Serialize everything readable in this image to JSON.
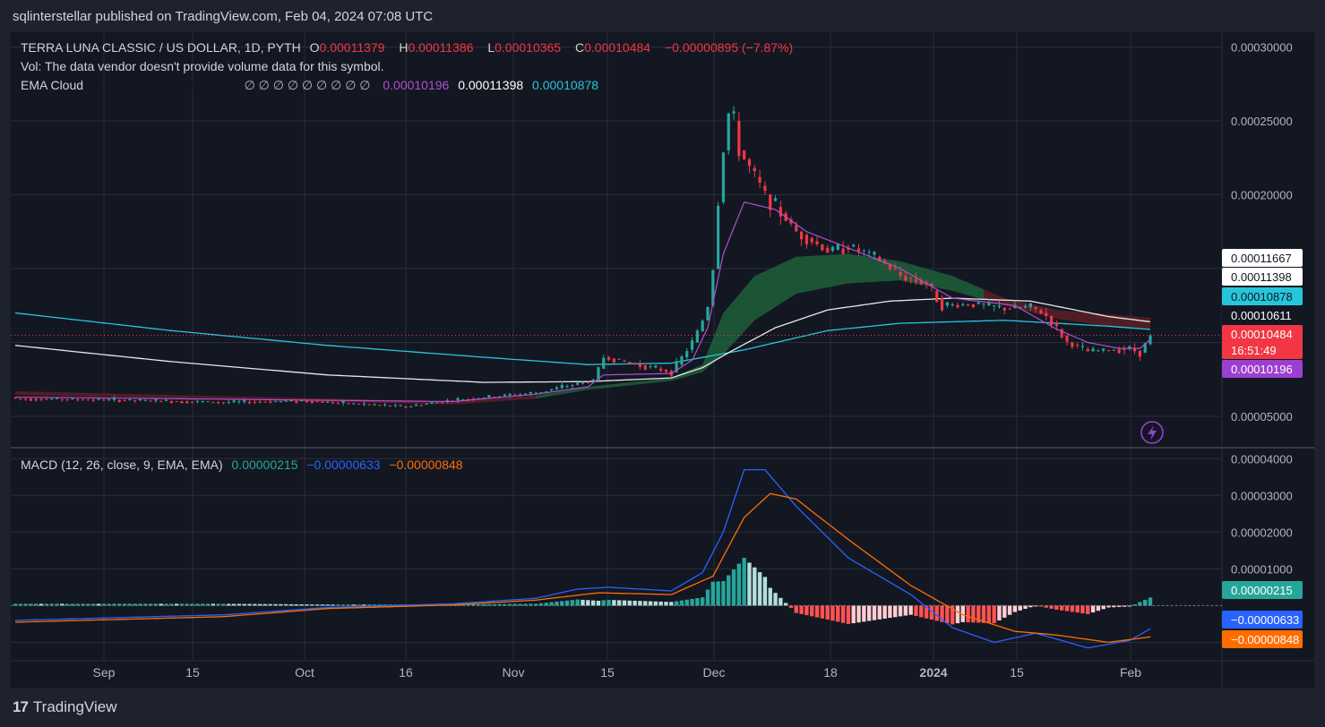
{
  "header": {
    "published": "sqlinterstellar published on TradingView.com, Feb 04, 2024 07:08 UTC"
  },
  "legend": {
    "symbol": "TERRA LUNA CLASSIC / US DOLLAR, 1D, PYTH",
    "o_label": "O",
    "o_value": "0.00011379",
    "h_label": "H",
    "h_value": "0.00011386",
    "l_label": "L",
    "l_value": "0.00010365",
    "c_label": "C",
    "c_value": "0.00010484",
    "change": "−0.00000895 (−7.87%)",
    "vol_note": "Vol: The data vendor doesn't provide volume data for this symbol.",
    "ema_label": "EMA Cloud",
    "ema_v1": "0.00010611",
    "ema_v2": "0.00011667",
    "ema_empty": "∅  ∅  ∅  ∅  ∅  ∅  ∅  ∅  ∅",
    "ema_v3": "0.00010196",
    "ema_v4": "0.00011398",
    "ema_v5": "0.00010878",
    "macd_label": "MACD (12, 26, close, 9, EMA, EMA)",
    "macd_hist": "0.00000215",
    "macd_line": "−0.00000633",
    "macd_signal": "−0.00000848"
  },
  "footer": {
    "brand": "TradingView",
    "logo": "17"
  },
  "colors": {
    "bg": "#131722",
    "up": "#26a69a",
    "down": "#f23645",
    "grid": "#2a2e39",
    "ema_fast": "#b14fcf",
    "ema_white": "#e8e8e8",
    "ema_teal": "#26c6da",
    "cloud_green": "#1e5f3a",
    "cloud_red": "#5c1f27",
    "macd_line": "#2962ff",
    "signal": "#ff6d00",
    "hist_up_strong": "#26a69a",
    "hist_up_weak": "#b2dfdb",
    "hist_down_strong": "#ff5252",
    "hist_down_weak": "#ffcdd2"
  },
  "chart_data": {
    "type": "candlestick",
    "price_axis": {
      "ticks": [
        "0.00030000",
        "0.00025000",
        "0.00020000",
        "0.00005000"
      ],
      "ylim": [
        3e-05,
        0.00031
      ]
    },
    "macd_axis": {
      "ticks": [
        "0.00004000",
        "0.00003000",
        "0.00002000",
        "0.00001000"
      ],
      "ylim": [
        -1.5e-05,
        4.25e-05
      ]
    },
    "x_ticks": [
      "Sep",
      "15",
      "Oct",
      "16",
      "Nov",
      "15",
      "Dec",
      "18",
      "2024",
      "15",
      "Feb"
    ],
    "price_labels": [
      {
        "text": "0.00011667",
        "value": 0.00011667,
        "bg": "#ffffff",
        "fg": "#131722"
      },
      {
        "text": "0.00011398",
        "value": 0.00011398,
        "bg": "#ffffff",
        "fg": "#131722"
      },
      {
        "text": "0.00010878",
        "value": 0.00010878,
        "bg": "#26c6da",
        "fg": "#131722"
      },
      {
        "text": "0.00010611",
        "value": 0.00010611,
        "bg": "#131722",
        "fg": "#ffffff"
      },
      {
        "text": "0.00010484",
        "value": 0.00010484,
        "bg": "#f23645",
        "fg": "#ffffff"
      },
      {
        "text": "16:51:49",
        "value": 0.00010484,
        "bg": "#f23645",
        "fg": "#ffffff"
      },
      {
        "text": "0.00010196",
        "value": 0.00010196,
        "bg": "#9c3fd0",
        "fg": "#ffffff"
      }
    ],
    "macd_labels": [
      {
        "text": "0.00000215",
        "value": 2.15e-06,
        "bg": "#26a69a",
        "fg": "#ffffff"
      },
      {
        "text": "−0.00000633",
        "value": -6.33e-06,
        "bg": "#2962ff",
        "fg": "#ffffff"
      },
      {
        "text": "−0.00000848",
        "value": -8.48e-06,
        "bg": "#ff6d00",
        "fg": "#ffffff"
      }
    ],
    "last_close": 0.00010484,
    "anchors": {
      "close": [
        [
          0,
          6.2e-05
        ],
        [
          20,
          6.1e-05
        ],
        [
          40,
          5.95e-05
        ],
        [
          55,
          6.05e-05
        ],
        [
          65,
          5.85e-05
        ],
        [
          75,
          5.65e-05
        ],
        [
          84,
          6.1e-05
        ],
        [
          100,
          6.6e-05
        ],
        [
          111,
          7.45e-05
        ],
        [
          113,
          9e-05
        ],
        [
          120,
          8.45e-05
        ],
        [
          126,
          8e-05
        ],
        [
          128,
          9e-05
        ],
        [
          130,
          0.0001
        ],
        [
          132,
          0.000115
        ],
        [
          133,
          0.000125
        ],
        [
          134,
          0.00015
        ],
        [
          135,
          0.000195
        ],
        [
          136,
          0.00023
        ],
        [
          137,
          0.000255
        ],
        [
          138,
          0.00025
        ],
        [
          139,
          0.00023
        ],
        [
          141,
          0.000218
        ],
        [
          144,
          0.0002
        ],
        [
          150,
          0.000175
        ],
        [
          156,
          0.000162
        ],
        [
          160,
          0.000165
        ],
        [
          165,
          0.000158
        ],
        [
          170,
          0.000145
        ],
        [
          175,
          0.00014
        ],
        [
          178,
          0.000125
        ],
        [
          184,
          0.000126
        ],
        [
          190,
          0.000123
        ],
        [
          195,
          0.000124
        ],
        [
          198,
          0.000118
        ],
        [
          202,
          0.0001
        ],
        [
          206,
          9.4e-05
        ],
        [
          210,
          9.5e-05
        ],
        [
          214,
          9.6e-05
        ],
        [
          216,
          9.3e-05
        ],
        [
          218,
          0.0001048
        ]
      ],
      "ema_fast": [
        [
          0,
          6.3e-05
        ],
        [
          84,
          6e-05
        ],
        [
          100,
          6.5e-05
        ],
        [
          110,
          7e-05
        ],
        [
          113,
          7.8e-05
        ],
        [
          126,
          7.9e-05
        ],
        [
          130,
          8.8e-05
        ],
        [
          133,
          0.00011
        ],
        [
          136,
          0.00016
        ],
        [
          140,
          0.000195
        ],
        [
          146,
          0.00019
        ],
        [
          152,
          0.000175
        ],
        [
          160,
          0.000164
        ],
        [
          170,
          0.00015
        ],
        [
          180,
          0.00013
        ],
        [
          192,
          0.000125
        ],
        [
          200,
          0.000109
        ],
        [
          206,
          0.0001
        ],
        [
          212,
          9.6e-05
        ],
        [
          216,
          9.6e-05
        ],
        [
          218,
          0.000102
        ]
      ],
      "cloud_top": [
        [
          0,
          6.7e-05
        ],
        [
          84,
          6e-05
        ],
        [
          100,
          6.4e-05
        ],
        [
          110,
          7e-05
        ],
        [
          126,
          7.6e-05
        ],
        [
          132,
          8.5e-05
        ],
        [
          136,
          0.00012
        ],
        [
          142,
          0.000145
        ],
        [
          150,
          0.000158
        ],
        [
          160,
          0.00016
        ],
        [
          170,
          0.000155
        ],
        [
          180,
          0.000145
        ],
        [
          190,
          0.00013
        ],
        [
          200,
          0.000122
        ],
        [
          210,
          0.000119
        ],
        [
          218,
          0.0001167
        ]
      ],
      "cloud_bottom": [
        [
          0,
          6.45e-05
        ],
        [
          84,
          5.8e-05
        ],
        [
          100,
          6.2e-05
        ],
        [
          110,
          6.8e-05
        ],
        [
          126,
          7.4e-05
        ],
        [
          132,
          8e-05
        ],
        [
          136,
          9.2e-05
        ],
        [
          142,
          0.000115
        ],
        [
          150,
          0.000133
        ],
        [
          160,
          0.00014
        ],
        [
          170,
          0.000142
        ],
        [
          180,
          0.000135
        ],
        [
          190,
          0.000125
        ],
        [
          200,
          0.000116
        ],
        [
          210,
          0.000111
        ],
        [
          218,
          0.0001088
        ]
      ],
      "ema_white": [
        [
          0,
          9.8e-05
        ],
        [
          30,
          8.7e-05
        ],
        [
          60,
          7.8e-05
        ],
        [
          90,
          7.3e-05
        ],
        [
          110,
          7.35e-05
        ],
        [
          126,
          7.6e-05
        ],
        [
          132,
          8.3e-05
        ],
        [
          138,
          9.5e-05
        ],
        [
          146,
          0.00011
        ],
        [
          156,
          0.000122
        ],
        [
          168,
          0.000128
        ],
        [
          180,
          0.00013
        ],
        [
          195,
          0.000128
        ],
        [
          210,
          0.0001175
        ],
        [
          218,
          0.000114
        ]
      ],
      "ema_teal": [
        [
          0,
          0.00012
        ],
        [
          30,
          0.000108
        ],
        [
          60,
          9.8e-05
        ],
        [
          90,
          9e-05
        ],
        [
          110,
          8.5e-05
        ],
        [
          126,
          8.6e-05
        ],
        [
          140,
          9.5e-05
        ],
        [
          156,
          0.000108
        ],
        [
          170,
          0.000113
        ],
        [
          190,
          0.000115
        ],
        [
          210,
          0.000111
        ],
        [
          218,
          0.0001088
        ]
      ],
      "macd": [
        [
          0,
          -4e-06
        ],
        [
          40,
          -2.5e-06
        ],
        [
          60,
          -5e-07
        ],
        [
          84,
          5e-07
        ],
        [
          100,
          2e-06
        ],
        [
          108,
          4.5e-06
        ],
        [
          114,
          5e-06
        ],
        [
          126,
          4e-06
        ],
        [
          132,
          9e-06
        ],
        [
          136,
          2e-05
        ],
        [
          140,
          3.7e-05
        ],
        [
          144,
          3.7e-05
        ],
        [
          150,
          2.7e-05
        ],
        [
          160,
          1.3e-05
        ],
        [
          172,
          3e-06
        ],
        [
          180,
          -6e-06
        ],
        [
          188,
          -1e-05
        ],
        [
          196,
          -7.5e-06
        ],
        [
          206,
          -1.15e-05
        ],
        [
          214,
          -9.5e-06
        ],
        [
          218,
          -6.3e-06
        ]
      ],
      "signal": [
        [
          0,
          -4.5e-06
        ],
        [
          40,
          -3e-06
        ],
        [
          60,
          -8e-07
        ],
        [
          84,
          2e-07
        ],
        [
          100,
          1.5e-06
        ],
        [
          112,
          3.5e-06
        ],
        [
          126,
          3e-06
        ],
        [
          134,
          8e-06
        ],
        [
          140,
          2.4e-05
        ],
        [
          145,
          3.05e-05
        ],
        [
          150,
          2.9e-05
        ],
        [
          160,
          1.8e-05
        ],
        [
          172,
          5.5e-06
        ],
        [
          182,
          -2.5e-06
        ],
        [
          192,
          -7e-06
        ],
        [
          200,
          -8e-06
        ],
        [
          210,
          -1e-05
        ],
        [
          218,
          -8.5e-06
        ]
      ]
    }
  }
}
